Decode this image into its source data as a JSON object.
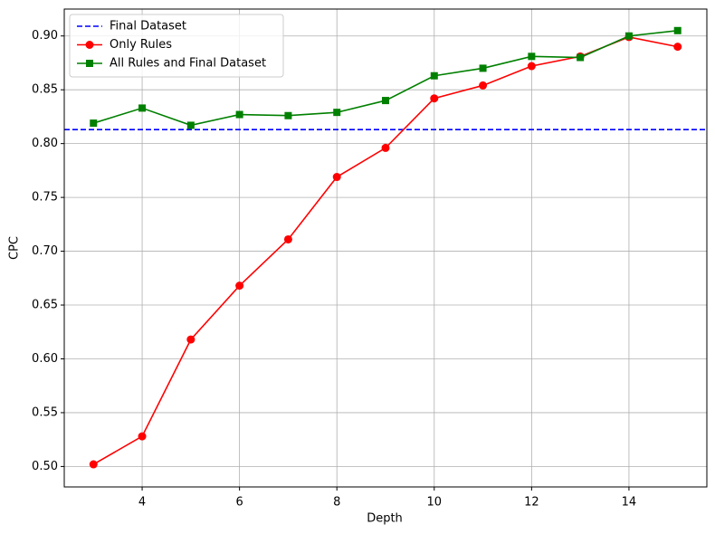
{
  "chart_data": {
    "type": "line",
    "xlabel": "Depth",
    "ylabel": "CPC",
    "x": [
      3,
      4,
      5,
      6,
      7,
      8,
      9,
      10,
      11,
      12,
      13,
      14,
      15
    ],
    "series": [
      {
        "name": "Final Dataset",
        "color": "#0000ff",
        "style": "dashed",
        "y": 0.813
      },
      {
        "name": "Only Rules",
        "color": "#ff0000",
        "marker": "circle",
        "values": [
          0.502,
          0.528,
          0.618,
          0.668,
          0.711,
          0.769,
          0.796,
          0.842,
          0.854,
          0.872,
          0.881,
          0.899,
          0.89
        ]
      },
      {
        "name": "All Rules and Final Dataset",
        "color": "#008000",
        "marker": "square",
        "values": [
          0.819,
          0.833,
          0.817,
          0.827,
          0.826,
          0.829,
          0.84,
          0.863,
          0.87,
          0.881,
          0.88,
          0.9,
          0.905
        ]
      }
    ],
    "xlim": [
      2.4,
      15.6
    ],
    "ylim": [
      0.481,
      0.925
    ],
    "xticks": [
      4,
      6,
      8,
      10,
      12,
      14
    ],
    "yticks": [
      {
        "value": 0.5,
        "label": "0.50"
      },
      {
        "value": 0.55,
        "label": "0.55"
      },
      {
        "value": 0.6,
        "label": "0.60"
      },
      {
        "value": 0.65,
        "label": "0.65"
      },
      {
        "value": 0.7,
        "label": "0.70"
      },
      {
        "value": 0.75,
        "label": "0.75"
      },
      {
        "value": 0.8,
        "label": "0.80"
      },
      {
        "value": 0.85,
        "label": "0.85"
      },
      {
        "value": 0.9,
        "label": "0.90"
      }
    ],
    "grid": true,
    "legend": "upper left"
  }
}
